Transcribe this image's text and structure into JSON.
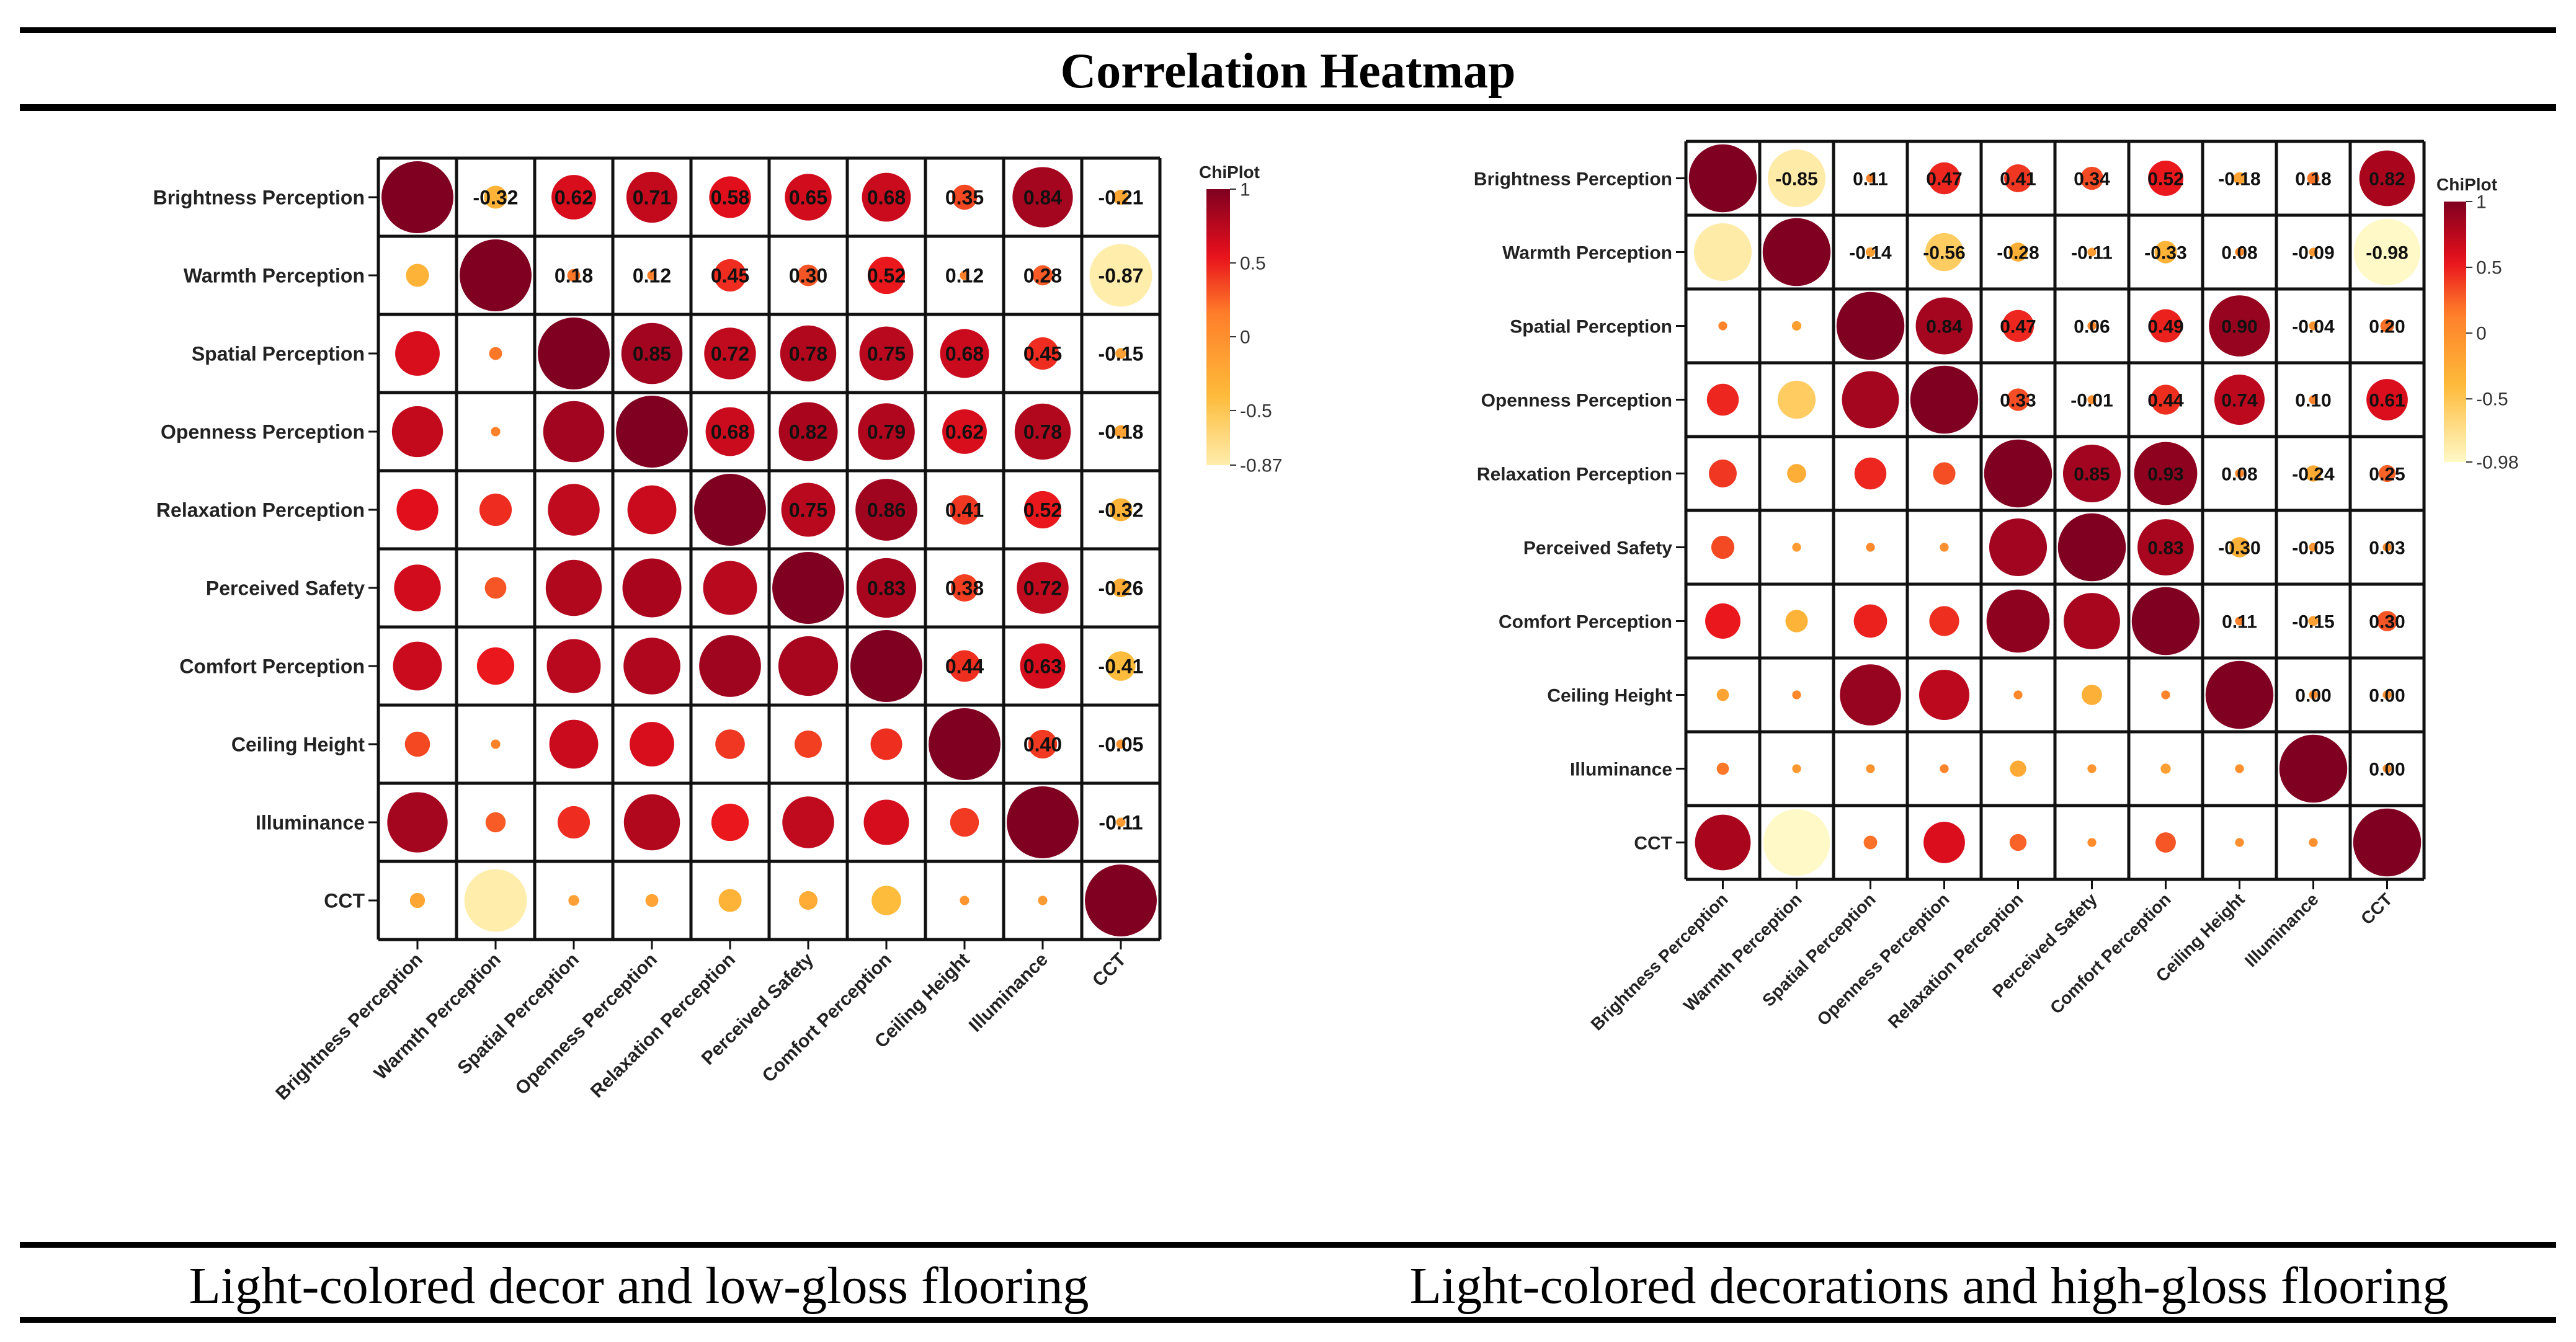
{
  "header": {
    "title": "Correlation Heatmap"
  },
  "captions": {
    "left": "Light-colored decor and low-gloss flooring",
    "right": "Light-colored decorations and high-gloss flooring"
  },
  "colors": {
    "high": "#7f0020",
    "mid_high": "#e8101c",
    "mid": "#ff7f2a",
    "mid_low": "#fdbb3a",
    "low": "#fffbcc"
  },
  "chart_data": [
    {
      "type": "heatmap",
      "variables": [
        "Brightness Perception",
        "Warmth Perception",
        "Spatial Perception",
        "Openness Perception",
        "Relaxation Perception",
        "Perceived Safety",
        "Comfort Perception",
        "Ceiling Height",
        "Illuminance",
        "CCT"
      ],
      "matrix": [
        [
          1,
          -0.32,
          0.62,
          0.71,
          0.58,
          0.65,
          0.68,
          0.35,
          0.84,
          -0.21
        ],
        [
          -0.32,
          1,
          0.18,
          0.12,
          0.45,
          0.3,
          0.52,
          0.12,
          0.28,
          -0.87
        ],
        [
          0.62,
          0.18,
          1,
          0.85,
          0.72,
          0.78,
          0.75,
          0.68,
          0.45,
          -0.15
        ],
        [
          0.71,
          0.12,
          0.85,
          1,
          0.68,
          0.82,
          0.79,
          0.62,
          0.78,
          -0.18
        ],
        [
          0.58,
          0.45,
          0.72,
          0.68,
          1,
          0.75,
          0.86,
          0.41,
          0.52,
          -0.32
        ],
        [
          0.65,
          0.3,
          0.78,
          0.82,
          0.75,
          1,
          0.83,
          0.38,
          0.72,
          -0.26
        ],
        [
          0.68,
          0.52,
          0.75,
          0.79,
          0.86,
          0.83,
          1,
          0.44,
          0.63,
          -0.41
        ],
        [
          0.35,
          0.12,
          0.68,
          0.62,
          0.41,
          0.38,
          0.44,
          1,
          0.4,
          -0.05
        ],
        [
          0.84,
          0.28,
          0.45,
          0.78,
          0.52,
          0.72,
          0.63,
          0.4,
          1,
          -0.11
        ],
        [
          -0.21,
          -0.87,
          -0.15,
          -0.18,
          -0.32,
          -0.26,
          -0.41,
          -0.05,
          -0.11,
          1
        ]
      ],
      "value_labels": [
        [
          "",
          "-0.32",
          "0.62",
          "0.71",
          "0.58",
          "0.65",
          "0.68",
          "0.35",
          "0.84",
          "-0.21"
        ],
        [
          "",
          "",
          "0.18",
          "0.12",
          "0.45",
          "0.30",
          "0.52",
          "0.12",
          "0.28",
          "-0.87"
        ],
        [
          "",
          "",
          "",
          "0.85",
          "0.72",
          "0.78",
          "0.75",
          "0.68",
          "0.45",
          "-0.15"
        ],
        [
          "",
          "",
          "",
          "",
          "0.68",
          "0.82",
          "0.79",
          "0.62",
          "0.78",
          "-0.18"
        ],
        [
          "",
          "",
          "",
          "",
          "",
          "0.75",
          "0.86",
          "0.41",
          "0.52",
          "-0.32"
        ],
        [
          "",
          "",
          "",
          "",
          "",
          "",
          "0.83",
          "0.38",
          "0.72",
          "-0.26"
        ],
        [
          "",
          "",
          "",
          "",
          "",
          "",
          "",
          "0.44",
          "0.63",
          "-0.41"
        ],
        [
          "",
          "",
          "",
          "",
          "",
          "",
          "",
          "",
          "0.40",
          "-0.05"
        ],
        [
          "",
          "",
          "",
          "",
          "",
          "",
          "",
          "",
          "",
          "-0.11"
        ],
        [
          "",
          "",
          "",
          "",
          "",
          "",
          "",
          "",
          "",
          ""
        ]
      ],
      "legend": {
        "title": "ChiPlot",
        "range": [
          -0.87,
          1
        ],
        "ticks": [
          "1",
          "0.5",
          "0",
          "-0.5",
          "-0.87"
        ],
        "tick_values": [
          1,
          0.5,
          0,
          -0.5,
          -0.87
        ]
      }
    },
    {
      "type": "heatmap",
      "variables": [
        "Brightness Perception",
        "Warmth Perception",
        "Spatial Perception",
        "Openness Perception",
        "Relaxation Perception",
        "Perceived Safety",
        "Comfort Perception",
        "Ceiling Height",
        "Illuminance",
        "CCT"
      ],
      "matrix": [
        [
          1,
          -0.85,
          0.11,
          0.47,
          0.41,
          0.34,
          0.52,
          -0.18,
          0.18,
          0.82
        ],
        [
          -0.85,
          1,
          -0.14,
          -0.56,
          -0.28,
          -0.11,
          -0.33,
          0.08,
          -0.09,
          -0.98
        ],
        [
          0.11,
          -0.14,
          1,
          0.84,
          0.47,
          0.06,
          0.49,
          0.9,
          -0.04,
          0.2
        ],
        [
          0.47,
          -0.56,
          0.84,
          1,
          0.33,
          -0.01,
          0.44,
          0.74,
          0.1,
          0.61
        ],
        [
          0.41,
          -0.28,
          0.47,
          0.33,
          1,
          0.85,
          0.93,
          0.08,
          -0.24,
          0.25
        ],
        [
          0.34,
          -0.11,
          0.06,
          -0.01,
          0.85,
          1,
          0.83,
          -0.3,
          -0.05,
          0.03
        ],
        [
          0.52,
          -0.33,
          0.49,
          0.44,
          0.93,
          0.83,
          1,
          0.11,
          -0.15,
          0.3
        ],
        [
          -0.18,
          0.08,
          0.9,
          0.74,
          0.08,
          -0.3,
          0.11,
          1,
          0.0,
          0.0
        ],
        [
          0.18,
          -0.09,
          -0.04,
          0.1,
          -0.24,
          -0.05,
          -0.15,
          0.0,
          1,
          0.0
        ],
        [
          0.82,
          -0.98,
          0.2,
          0.61,
          0.25,
          0.03,
          0.3,
          0.0,
          0.0,
          1
        ]
      ],
      "value_labels": [
        [
          "",
          "-0.85",
          "0.11",
          "0.47",
          "0.41",
          "0.34",
          "0.52",
          "-0.18",
          "0.18",
          "0.82"
        ],
        [
          "",
          "",
          "-0.14",
          "-0.56",
          "-0.28",
          "-0.11",
          "-0.33",
          "0.08",
          "-0.09",
          "-0.98"
        ],
        [
          "",
          "",
          "",
          "0.84",
          "0.47",
          "0.06",
          "0.49",
          "0.90",
          "-0.04",
          "0.20"
        ],
        [
          "",
          "",
          "",
          "",
          "0.33",
          "-0.01",
          "0.44",
          "0.74",
          "0.10",
          "0.61"
        ],
        [
          "",
          "",
          "",
          "",
          "",
          "0.85",
          "0.93",
          "0.08",
          "-0.24",
          "0.25"
        ],
        [
          "",
          "",
          "",
          "",
          "",
          "",
          "0.83",
          "-0.30",
          "-0.05",
          "0.03"
        ],
        [
          "",
          "",
          "",
          "",
          "",
          "",
          "",
          "0.11",
          "-0.15",
          "0.30"
        ],
        [
          "",
          "",
          "",
          "",
          "",
          "",
          "",
          "",
          "0.00",
          "0.00"
        ],
        [
          "",
          "",
          "",
          "",
          "",
          "",
          "",
          "",
          "",
          "0.00"
        ],
        [
          "",
          "",
          "",
          "",
          "",
          "",
          "",
          "",
          "",
          ""
        ]
      ],
      "legend": {
        "title": "ChiPlot",
        "range": [
          -0.98,
          1
        ],
        "ticks": [
          "1",
          "0.5",
          "0",
          "-0.5",
          "-0.98"
        ],
        "tick_values": [
          1,
          0.5,
          0,
          -0.5,
          -0.98
        ]
      }
    }
  ]
}
